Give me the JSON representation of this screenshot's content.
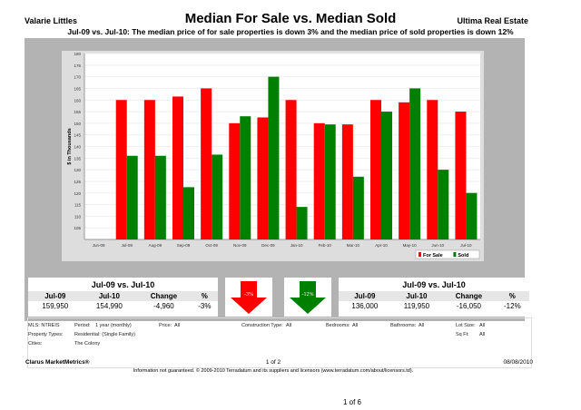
{
  "header": {
    "agent": "Valarie Littles",
    "title": "Median For Sale vs. Median Sold",
    "company": "Ultima Real Estate",
    "subtitle": "Jul-09 vs. Jul-10:  The median price of for sale properties is down 3% and the median price of sold properties is down 12%"
  },
  "chart_data": {
    "type": "bar",
    "ylabel": "$ in Thousands",
    "ylim": [
      100,
      180
    ],
    "yticks": [
      105,
      110,
      115,
      120,
      125,
      130,
      135,
      140,
      145,
      150,
      155,
      160,
      165,
      170,
      175,
      180
    ],
    "categories": [
      "Jun-09",
      "Jul-09",
      "Aug-09",
      "Sep-09",
      "Oct-09",
      "Nov-09",
      "Dec-09",
      "Jan-10",
      "Feb-10",
      "Mar-10",
      "Apr-10",
      "May-10",
      "Jun-10",
      "Jul-10"
    ],
    "series": [
      {
        "name": "For Sale",
        "color": "#ff0000",
        "values": [
          null,
          160,
          160,
          161.5,
          165,
          150,
          152.5,
          160,
          150,
          149.5,
          160,
          159,
          160,
          155
        ]
      },
      {
        "name": "Sold",
        "color": "#008000",
        "values": [
          null,
          136,
          136,
          122.5,
          136.5,
          153,
          170,
          114,
          149.5,
          127,
          155,
          165,
          130,
          120
        ]
      }
    ],
    "legend": "bottom-right",
    "grid": true
  },
  "summary_for_sale": {
    "title": "Jul-09 vs. Jul-10",
    "headers": [
      "Jul-09",
      "Jul-10",
      "Change",
      "%"
    ],
    "values": [
      "159,950",
      "154,990",
      "-4,960",
      "-3%"
    ],
    "arrow": "-3%",
    "arrow_color": "#ff0000"
  },
  "summary_sold": {
    "title": "Jul-09 vs. Jul-10",
    "headers": [
      "Jul-09",
      "Jul-10",
      "Change",
      "%"
    ],
    "values": [
      "136,000",
      "119,950",
      "-16,050",
      "-12%"
    ],
    "arrow": "-12%",
    "arrow_color": "#008000"
  },
  "criteria": {
    "mls": "MLS:  NTREIS",
    "period_label": "Period:",
    "period": "1 year (monthly)",
    "price_label": "Price:",
    "price": "All",
    "construction_label": "Construction Type:",
    "construction": "All",
    "bedrooms_label": "Bedrooms:",
    "bedrooms": "All",
    "bathrooms_label": "Bathrooms:",
    "bathrooms": "All",
    "lot_label": "Lot Size:",
    "lot": "All",
    "ptype_label": "Property Types:",
    "ptype": "Residential: (Single Family)",
    "sqft_label": "Sq Ft:",
    "sqft": "All",
    "cities_label": "Cities:",
    "cities": "The Colony"
  },
  "footer": {
    "brand": "Clarus MarketMetrics®",
    "page": "1 of 2",
    "date": "08/08/2010",
    "disclaimer": "Information not guaranteed.  © 2009-2010 Terradatum and its suppliers and licensors (www.terradatum.com/about/licensors.td).",
    "doc_page": "1 of 6"
  }
}
